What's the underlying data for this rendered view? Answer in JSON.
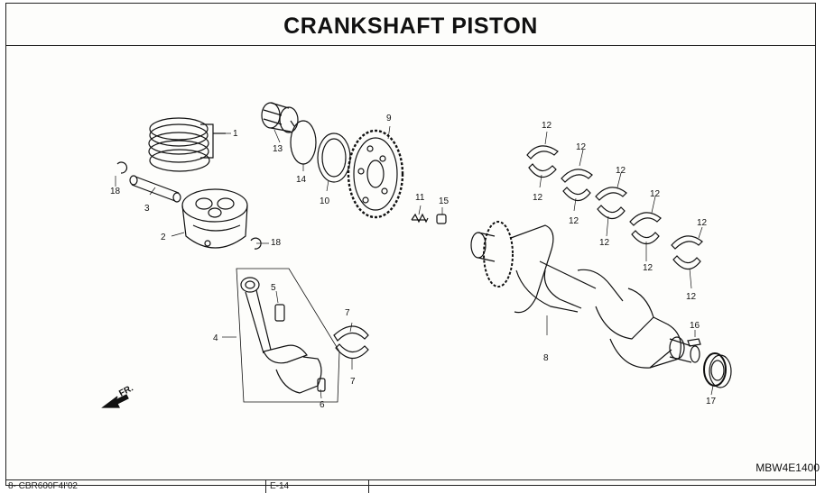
{
  "header": {
    "title": "CRANKSHAFT PISTON"
  },
  "diagram": {
    "reference_code": "MBW4E1400",
    "front_marker": "FR.",
    "callouts": {
      "c1": "1",
      "c2": "2",
      "c3": "3",
      "c4": "4",
      "c5": "5",
      "c6": "6",
      "c7a": "7",
      "c7b": "7",
      "c8": "8",
      "c9": "9",
      "c10": "10",
      "c11": "11",
      "c12a": "12",
      "c12b": "12",
      "c12c": "12",
      "c12d": "12",
      "c12e": "12",
      "c12f": "12",
      "c12g": "12",
      "c12h": "12",
      "c12i": "12",
      "c12j": "12",
      "c13": "13",
      "c14": "14",
      "c15": "15",
      "c16": "16",
      "c17": "17",
      "c18a": "18",
      "c18b": "18"
    }
  },
  "footer": {
    "left": "8- CBR600F4I'02",
    "mid": "E-14"
  }
}
